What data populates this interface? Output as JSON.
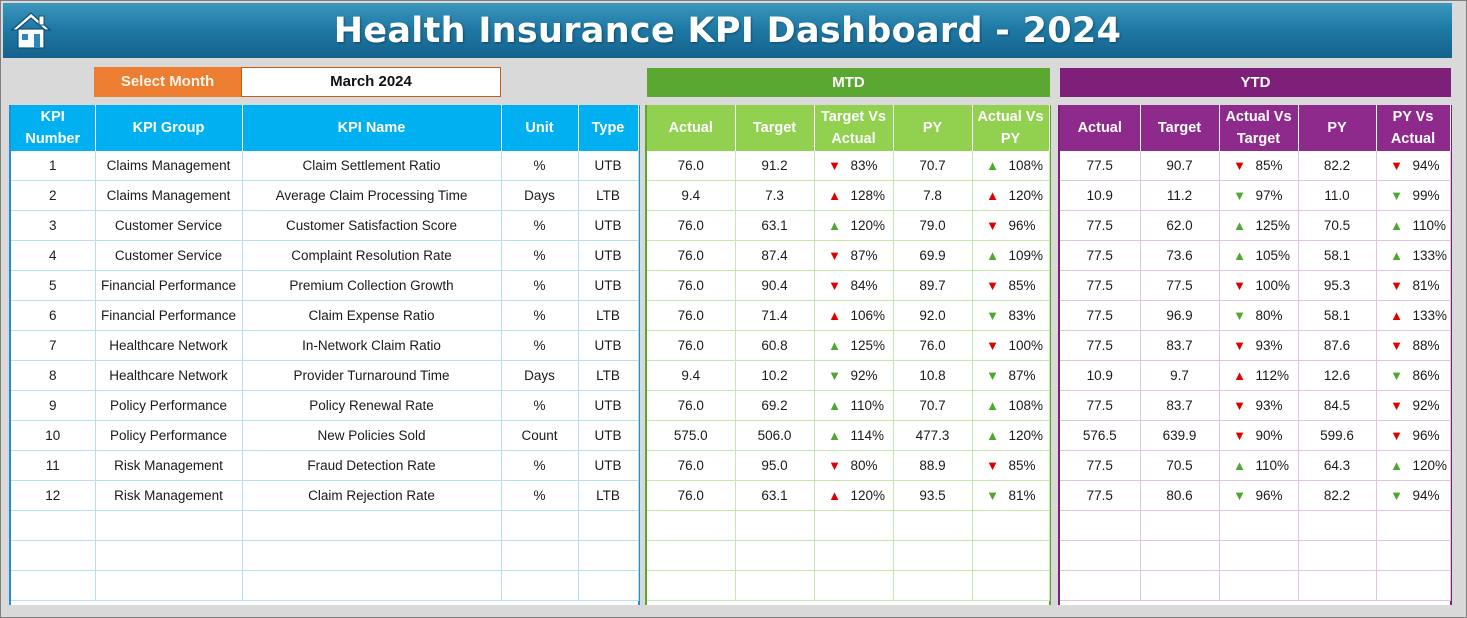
{
  "header": {
    "title": "Health Insurance KPI Dashboard - 2024",
    "home_icon": "home-icon"
  },
  "selector": {
    "label": "Select Month",
    "value": "March 2024"
  },
  "groups": {
    "mtd": "MTD",
    "ytd": "YTD"
  },
  "kpi_columns": [
    "KPI Number",
    "KPI Group",
    "KPI Name",
    "Unit",
    "Type"
  ],
  "mtd_columns": [
    "Actual",
    "Target",
    "Target Vs Actual",
    "PY",
    "Actual Vs PY"
  ],
  "ytd_columns": [
    "Actual",
    "Target",
    "Actual Vs Target",
    "PY",
    "PY Vs Actual"
  ],
  "colors": {
    "up_good": "#4ea72e",
    "bad": "#e00000",
    "kpi_header": "#00b0f0",
    "mtd_header": "#92d050",
    "ytd_header": "#8e2a8b",
    "title_bar": "#1f7aa6"
  },
  "rows": [
    {
      "kpi": {
        "number": "1",
        "group": "Claims Management",
        "name": "Claim Settlement Ratio",
        "unit": "%",
        "type": "UTB"
      },
      "mtd": {
        "actual": "76.0",
        "target": "91.2",
        "tva": "83%",
        "tva_icon": "down-red",
        "py": "70.7",
        "avp": "108%",
        "avp_icon": "up-green"
      },
      "ytd": {
        "actual": "77.5",
        "target": "90.7",
        "avt": "85%",
        "avt_icon": "down-red",
        "py": "82.2",
        "pva": "94%",
        "pva_icon": "down-red"
      }
    },
    {
      "kpi": {
        "number": "2",
        "group": "Claims Management",
        "name": "Average Claim Processing Time",
        "unit": "Days",
        "type": "LTB"
      },
      "mtd": {
        "actual": "9.4",
        "target": "7.3",
        "tva": "128%",
        "tva_icon": "up-red",
        "py": "7.8",
        "avp": "120%",
        "avp_icon": "up-red"
      },
      "ytd": {
        "actual": "10.9",
        "target": "11.2",
        "avt": "97%",
        "avt_icon": "down-green",
        "py": "11.0",
        "pva": "99%",
        "pva_icon": "down-green"
      }
    },
    {
      "kpi": {
        "number": "3",
        "group": "Customer Service",
        "name": "Customer Satisfaction Score",
        "unit": "%",
        "type": "UTB"
      },
      "mtd": {
        "actual": "76.0",
        "target": "63.1",
        "tva": "120%",
        "tva_icon": "up-green",
        "py": "79.0",
        "avp": "96%",
        "avp_icon": "down-red"
      },
      "ytd": {
        "actual": "77.5",
        "target": "62.0",
        "avt": "125%",
        "avt_icon": "up-green",
        "py": "70.5",
        "pva": "110%",
        "pva_icon": "up-green"
      }
    },
    {
      "kpi": {
        "number": "4",
        "group": "Customer Service",
        "name": "Complaint Resolution Rate",
        "unit": "%",
        "type": "UTB"
      },
      "mtd": {
        "actual": "76.0",
        "target": "87.4",
        "tva": "87%",
        "tva_icon": "down-red",
        "py": "69.9",
        "avp": "109%",
        "avp_icon": "up-green"
      },
      "ytd": {
        "actual": "77.5",
        "target": "73.6",
        "avt": "105%",
        "avt_icon": "up-green",
        "py": "58.1",
        "pva": "133%",
        "pva_icon": "up-green"
      }
    },
    {
      "kpi": {
        "number": "5",
        "group": "Financial Performance",
        "name": "Premium Collection Growth",
        "unit": "%",
        "type": "UTB"
      },
      "mtd": {
        "actual": "76.0",
        "target": "90.4",
        "tva": "84%",
        "tva_icon": "down-red",
        "py": "89.7",
        "avp": "85%",
        "avp_icon": "down-red"
      },
      "ytd": {
        "actual": "77.5",
        "target": "77.5",
        "avt": "100%",
        "avt_icon": "down-red",
        "py": "95.3",
        "pva": "81%",
        "pva_icon": "down-red"
      }
    },
    {
      "kpi": {
        "number": "6",
        "group": "Financial Performance",
        "name": "Claim Expense Ratio",
        "unit": "%",
        "type": "LTB"
      },
      "mtd": {
        "actual": "76.0",
        "target": "71.4",
        "tva": "106%",
        "tva_icon": "up-red",
        "py": "92.0",
        "avp": "83%",
        "avp_icon": "down-green"
      },
      "ytd": {
        "actual": "77.5",
        "target": "96.9",
        "avt": "80%",
        "avt_icon": "down-green",
        "py": "58.1",
        "pva": "133%",
        "pva_icon": "up-red"
      }
    },
    {
      "kpi": {
        "number": "7",
        "group": "Healthcare Network",
        "name": "In-Network Claim Ratio",
        "unit": "%",
        "type": "UTB"
      },
      "mtd": {
        "actual": "76.0",
        "target": "60.8",
        "tva": "125%",
        "tva_icon": "up-green",
        "py": "76.0",
        "avp": "100%",
        "avp_icon": "down-red"
      },
      "ytd": {
        "actual": "77.5",
        "target": "83.7",
        "avt": "93%",
        "avt_icon": "down-red",
        "py": "87.6",
        "pva": "88%",
        "pva_icon": "down-red"
      }
    },
    {
      "kpi": {
        "number": "8",
        "group": "Healthcare Network",
        "name": "Provider Turnaround Time",
        "unit": "Days",
        "type": "LTB"
      },
      "mtd": {
        "actual": "9.4",
        "target": "10.2",
        "tva": "92%",
        "tva_icon": "down-green",
        "py": "10.8",
        "avp": "87%",
        "avp_icon": "down-green"
      },
      "ytd": {
        "actual": "10.9",
        "target": "9.7",
        "avt": "112%",
        "avt_icon": "up-red",
        "py": "12.6",
        "pva": "86%",
        "pva_icon": "down-green"
      }
    },
    {
      "kpi": {
        "number": "9",
        "group": "Policy Performance",
        "name": "Policy Renewal Rate",
        "unit": "%",
        "type": "UTB"
      },
      "mtd": {
        "actual": "76.0",
        "target": "69.2",
        "tva": "110%",
        "tva_icon": "up-green",
        "py": "70.7",
        "avp": "108%",
        "avp_icon": "up-green"
      },
      "ytd": {
        "actual": "77.5",
        "target": "83.7",
        "avt": "93%",
        "avt_icon": "down-red",
        "py": "84.5",
        "pva": "92%",
        "pva_icon": "down-red"
      }
    },
    {
      "kpi": {
        "number": "10",
        "group": "Policy Performance",
        "name": "New Policies Sold",
        "unit": "Count",
        "type": "UTB"
      },
      "mtd": {
        "actual": "575.0",
        "target": "506.0",
        "tva": "114%",
        "tva_icon": "up-green",
        "py": "477.3",
        "avp": "120%",
        "avp_icon": "up-green"
      },
      "ytd": {
        "actual": "576.5",
        "target": "639.9",
        "avt": "90%",
        "avt_icon": "down-red",
        "py": "599.6",
        "pva": "96%",
        "pva_icon": "down-red"
      }
    },
    {
      "kpi": {
        "number": "11",
        "group": "Risk Management",
        "name": "Fraud Detection Rate",
        "unit": "%",
        "type": "UTB"
      },
      "mtd": {
        "actual": "76.0",
        "target": "95.0",
        "tva": "80%",
        "tva_icon": "down-red",
        "py": "88.9",
        "avp": "85%",
        "avp_icon": "down-red"
      },
      "ytd": {
        "actual": "77.5",
        "target": "70.5",
        "avt": "110%",
        "avt_icon": "up-green",
        "py": "64.3",
        "pva": "120%",
        "pva_icon": "up-green"
      }
    },
    {
      "kpi": {
        "number": "12",
        "group": "Risk Management",
        "name": "Claim Rejection Rate",
        "unit": "%",
        "type": "LTB"
      },
      "mtd": {
        "actual": "76.0",
        "target": "63.1",
        "tva": "120%",
        "tva_icon": "up-red",
        "py": "93.5",
        "avp": "81%",
        "avp_icon": "down-green"
      },
      "ytd": {
        "actual": "77.5",
        "target": "80.6",
        "avt": "96%",
        "avt_icon": "down-green",
        "py": "82.2",
        "pva": "94%",
        "pva_icon": "down-green"
      }
    }
  ]
}
